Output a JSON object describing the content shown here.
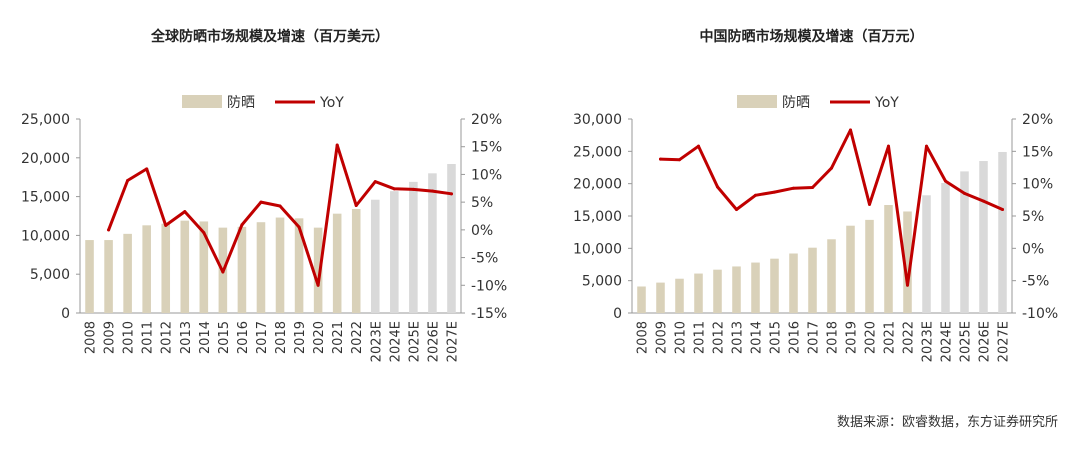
{
  "chart_data": [
    {
      "type": "bar",
      "title": "全球防晒市场规模及增速（百万美元）",
      "categories": [
        "2008",
        "2009",
        "2010",
        "2011",
        "2012",
        "2013",
        "2014",
        "2015",
        "2016",
        "2017",
        "2018",
        "2019",
        "2020",
        "2021",
        "2022",
        "2023E",
        "2024E",
        "2025E",
        "2026E",
        "2027E"
      ],
      "series": [
        {
          "name": "防晒",
          "type": "bar",
          "axis": "left",
          "values": [
            9400,
            9400,
            10200,
            11300,
            11500,
            11900,
            11800,
            11000,
            11100,
            11700,
            12300,
            12200,
            11000,
            12800,
            13400,
            14600,
            15700,
            16900,
            18000,
            19200
          ],
          "colors": [
            "#d9d1b9",
            "#d9d1b9",
            "#d9d1b9",
            "#d9d1b9",
            "#d9d1b9",
            "#d9d1b9",
            "#d9d1b9",
            "#d9d1b9",
            "#d9d1b9",
            "#d9d1b9",
            "#d9d1b9",
            "#d9d1b9",
            "#d9d1b9",
            "#d9d1b9",
            "#d9d1b9",
            "#d9d9d9",
            "#d9d9d9",
            "#d9d9d9",
            "#d9d9d9",
            "#d9d9d9"
          ]
        },
        {
          "name": "YoY",
          "type": "line",
          "axis": "right",
          "color": "#c00000",
          "values": [
            null,
            0,
            8.9,
            11,
            0.8,
            3.3,
            -0.5,
            -7.6,
            0.9,
            5,
            4.3,
            0.5,
            -10,
            15.3,
            4.4,
            8.7,
            7.4,
            7.3,
            7,
            6.5
          ]
        }
      ],
      "yleft": {
        "min": 0,
        "max": 25000,
        "ticks": [
          "0",
          "5,000",
          "10,000",
          "15,000",
          "20,000",
          "25,000"
        ],
        "tickValues": [
          0,
          5000,
          10000,
          15000,
          20000,
          25000
        ]
      },
      "yright": {
        "min": -15,
        "max": 20,
        "ticks": [
          "-15%",
          "-10%",
          "-5%",
          "0%",
          "5%",
          "10%",
          "15%",
          "20%"
        ],
        "tickValues": [
          -15,
          -10,
          -5,
          0,
          5,
          10,
          15,
          20
        ]
      },
      "legend": "top-center",
      "grid": false
    },
    {
      "type": "bar",
      "title": "中国防晒市场规模及增速（百万元）",
      "categories": [
        "2008",
        "2009",
        "2010",
        "2011",
        "2012",
        "2013",
        "2014",
        "2015",
        "2016",
        "2017",
        "2018",
        "2019",
        "2020",
        "2021",
        "2022",
        "2023E",
        "2024E",
        "2025E",
        "2026E",
        "2027E"
      ],
      "series": [
        {
          "name": "防晒",
          "type": "bar",
          "axis": "left",
          "values": [
            4100,
            4700,
            5300,
            6100,
            6700,
            7200,
            7800,
            8400,
            9200,
            10100,
            11400,
            13500,
            14400,
            16700,
            15700,
            18200,
            20100,
            21900,
            23500,
            24900
          ],
          "colors": [
            "#d9d1b9",
            "#d9d1b9",
            "#d9d1b9",
            "#d9d1b9",
            "#d9d1b9",
            "#d9d1b9",
            "#d9d1b9",
            "#d9d1b9",
            "#d9d1b9",
            "#d9d1b9",
            "#d9d1b9",
            "#d9d1b9",
            "#d9d1b9",
            "#d9d1b9",
            "#d9d1b9",
            "#d9d9d9",
            "#d9d9d9",
            "#d9d9d9",
            "#d9d9d9",
            "#d9d9d9"
          ]
        },
        {
          "name": "YoY",
          "type": "line",
          "axis": "right",
          "color": "#c00000",
          "values": [
            null,
            13.8,
            13.7,
            15.8,
            9.5,
            6,
            8.2,
            8.7,
            9.3,
            9.4,
            12.4,
            18.3,
            6.8,
            15.8,
            -5.7,
            15.8,
            10.4,
            8.5,
            7.3,
            6
          ]
        }
      ],
      "yleft": {
        "min": 0,
        "max": 30000,
        "ticks": [
          "0",
          "5,000",
          "10,000",
          "15,000",
          "20,000",
          "25,000",
          "30,000"
        ],
        "tickValues": [
          0,
          5000,
          10000,
          15000,
          20000,
          25000,
          30000
        ]
      },
      "yright": {
        "min": -10,
        "max": 20,
        "ticks": [
          "-10%",
          "-5%",
          "0%",
          "5%",
          "10%",
          "15%",
          "20%"
        ],
        "tickValues": [
          -10,
          -5,
          0,
          5,
          10,
          15,
          20
        ]
      },
      "legend": "top-center",
      "grid": false
    }
  ],
  "source": "数据来源：欧睿数据，东方证券研究所"
}
